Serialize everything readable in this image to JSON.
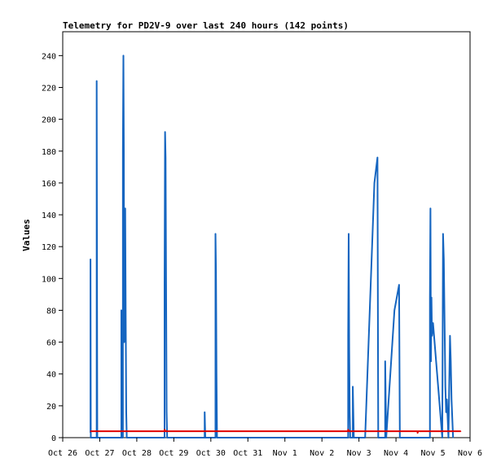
{
  "chart_data": {
    "type": "line",
    "title": "Telemetry for PD2V-9 over last 240 hours (142 points)",
    "xlabel": "",
    "ylabel": "Values",
    "xlim": [
      "Oct 26 00:00",
      "Nov 6 00:00"
    ],
    "ylim": [
      0,
      255
    ],
    "x_ticks": [
      "Oct 26",
      "Oct 27",
      "Oct 28",
      "Oct 29",
      "Oct 30",
      "Oct 31",
      "Nov 1",
      "Nov 2",
      "Nov 3",
      "Nov 4",
      "Nov 5",
      "Nov 6"
    ],
    "y_ticks": [
      0,
      20,
      40,
      60,
      80,
      100,
      120,
      140,
      160,
      180,
      200,
      220,
      240
    ],
    "grid": false,
    "legend": "none",
    "series": [
      {
        "color": "#1565c0",
        "points": [
          [
            "Oct 26 18:00",
            3
          ],
          [
            "Oct 26 18:00",
            112
          ],
          [
            "Oct 26 18:06",
            57
          ],
          [
            "Oct 26 18:12",
            0
          ],
          [
            "Oct 26 22:00",
            0
          ],
          [
            "Oct 26 22:00",
            224
          ],
          [
            "Oct 26 22:12",
            112
          ],
          [
            "Oct 26 22:24",
            0
          ],
          [
            "Oct 27 14:00",
            0
          ],
          [
            "Oct 27 14:00",
            80
          ],
          [
            "Oct 27 14:12",
            0
          ],
          [
            "Oct 27 15:00",
            0
          ],
          [
            "Oct 27 15:00",
            180
          ],
          [
            "Oct 27 15:20",
            240
          ],
          [
            "Oct 27 15:36",
            180
          ],
          [
            "Oct 27 15:50",
            60
          ],
          [
            "Oct 27 16:10",
            72
          ],
          [
            "Oct 27 16:30",
            144
          ],
          [
            "Oct 27 16:48",
            80
          ],
          [
            "Oct 27 17:10",
            16
          ],
          [
            "Oct 27 17:30",
            0
          ],
          [
            "Oct 28 18:00",
            0
          ],
          [
            "Oct 28 18:00",
            96
          ],
          [
            "Oct 28 18:20",
            192
          ],
          [
            "Oct 28 18:40",
            176
          ],
          [
            "Oct 28 19:00",
            96
          ],
          [
            "Oct 28 19:20",
            16
          ],
          [
            "Oct 28 19:40",
            0
          ],
          [
            "Oct 29 20:00",
            0
          ],
          [
            "Oct 29 20:00",
            16
          ],
          [
            "Oct 29 20:12",
            8
          ],
          [
            "Oct 29 20:24",
            0
          ],
          [
            "Oct 30 03:00",
            0
          ],
          [
            "Oct 30 03:00",
            128
          ],
          [
            "Oct 30 03:20",
            104
          ],
          [
            "Oct 30 03:40",
            40
          ],
          [
            "Oct 30 04:00",
            0
          ],
          [
            "Nov 2 17:00",
            0
          ],
          [
            "Nov 2 17:00",
            64
          ],
          [
            "Nov 2 17:20",
            128
          ],
          [
            "Nov 2 17:40",
            56
          ],
          [
            "Nov 2 18:00",
            16
          ],
          [
            "Nov 2 18:20",
            0
          ],
          [
            "Nov 2 20:00",
            0
          ],
          [
            "Nov 2 20:00",
            32
          ],
          [
            "Nov 2 20:20",
            16
          ],
          [
            "Nov 2 20:40",
            0
          ],
          [
            "Nov 3 04:00",
            0
          ],
          [
            "Nov 3 10:00",
            160
          ],
          [
            "Nov 3 12:00",
            176
          ],
          [
            "Nov 3 12:30",
            0
          ],
          [
            "Nov 3 17:00",
            0
          ],
          [
            "Nov 3 17:00",
            48
          ],
          [
            "Nov 3 17:20",
            24
          ],
          [
            "Nov 3 17:40",
            0
          ],
          [
            "Nov 3 23:00",
            80
          ],
          [
            "Nov 4 02:00",
            96
          ],
          [
            "Nov 4 02:30",
            0
          ],
          [
            "Nov 4 22:00",
            0
          ],
          [
            "Nov 4 22:00",
            88
          ],
          [
            "Nov 4 22:20",
            144
          ],
          [
            "Nov 4 22:40",
            48
          ],
          [
            "Nov 4 23:00",
            88
          ],
          [
            "Nov 4 23:20",
            64
          ],
          [
            "Nov 5 00:00",
            72
          ],
          [
            "Nov 5 06:00",
            0
          ],
          [
            "Nov 5 06:30",
            128
          ],
          [
            "Nov 5 07:00",
            112
          ],
          [
            "Nov 5 07:30",
            72
          ],
          [
            "Nov 5 08:00",
            32
          ],
          [
            "Nov 5 08:30",
            16
          ],
          [
            "Nov 5 09:00",
            24
          ],
          [
            "Nov 5 10:00",
            0
          ],
          [
            "Nov 5 11:00",
            64
          ],
          [
            "Nov 5 11:30",
            48
          ],
          [
            "Nov 5 12:00",
            24
          ],
          [
            "Nov 5 13:00",
            0
          ]
        ]
      },
      {
        "color": "#e00000",
        "points": [
          [
            "Oct 26 18:00",
            4
          ],
          [
            "Oct 28 18:00",
            4
          ],
          [
            "Oct 28 18:00",
            5
          ],
          [
            "Oct 28 18:40",
            4
          ],
          [
            "Nov 2 17:00",
            4
          ],
          [
            "Nov 2 17:00",
            5
          ],
          [
            "Nov 2 17:30",
            4
          ],
          [
            "Nov 4 14:00",
            4
          ],
          [
            "Nov 4 14:00",
            3
          ],
          [
            "Nov 4 14:20",
            4
          ],
          [
            "Nov 5 18:00",
            4
          ]
        ]
      }
    ]
  }
}
